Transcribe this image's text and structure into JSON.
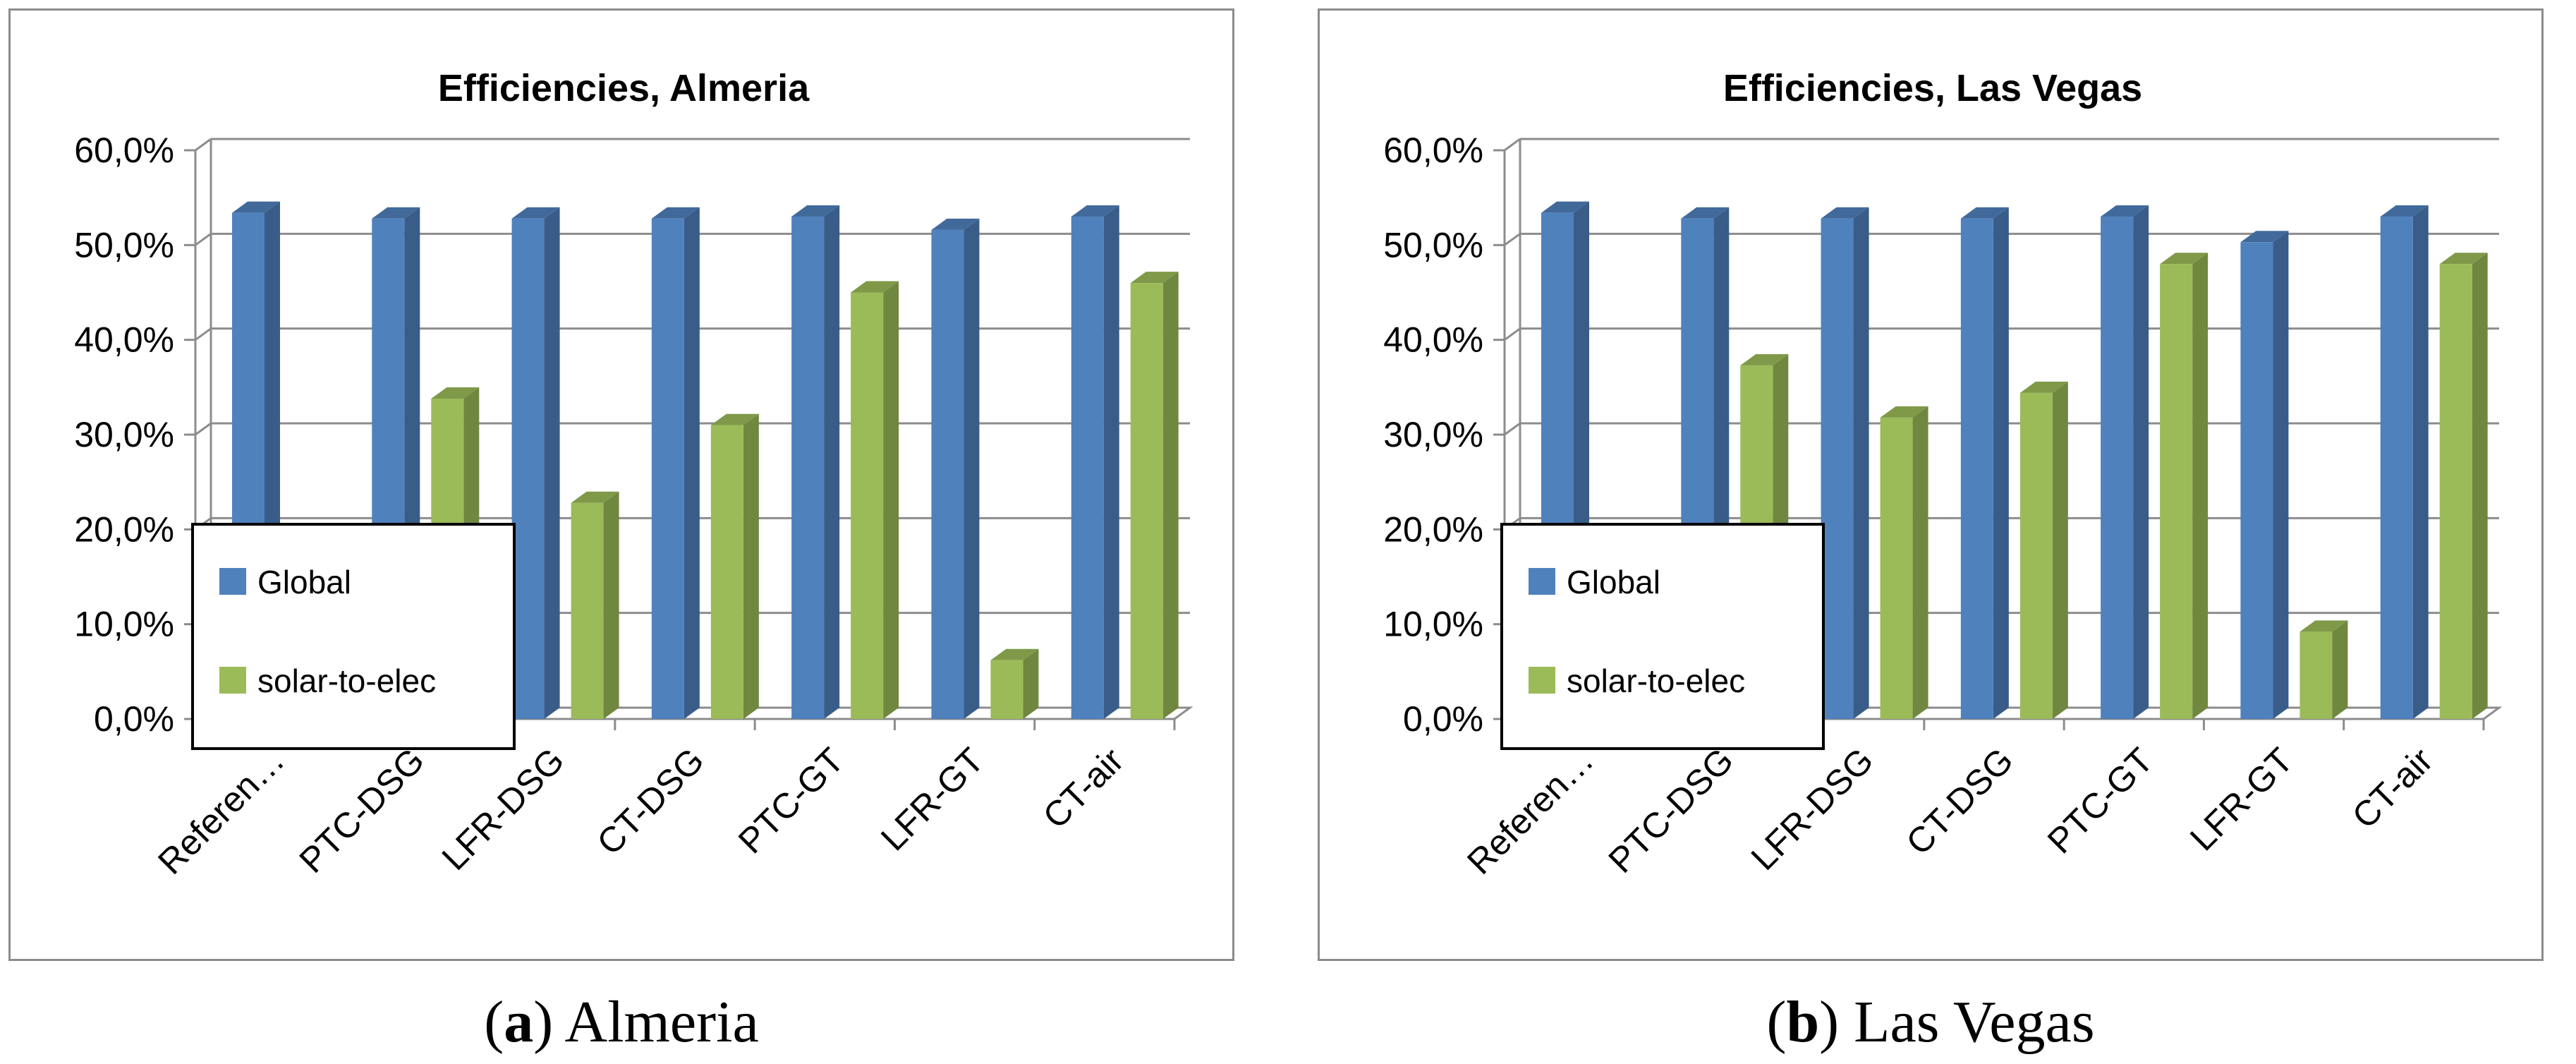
{
  "chart_data": [
    {
      "type": "bar",
      "title": "Efficiencies, Almeria",
      "categories": [
        "Referen…",
        "PTC-DSG",
        "LFR-DSG",
        "CT-DSG",
        "PTC-GT",
        "LFR-GT",
        "CT-air"
      ],
      "series": [
        {
          "name": "Global",
          "color": "#4f81bd",
          "values": [
            53.4,
            52.8,
            52.8,
            52.8,
            53.0,
            51.6,
            53.0
          ]
        },
        {
          "name": "solar-to-elec",
          "color": "#9bbb59",
          "values": [
            0,
            33.8,
            22.8,
            31.0,
            45.0,
            6.2,
            46.0
          ]
        }
      ],
      "yticks": [
        "0,0%",
        "10,0%",
        "20,0%",
        "30,0%",
        "40,0%",
        "50,0%",
        "60,0%"
      ],
      "ylim": [
        0,
        60
      ],
      "xlabel": "",
      "ylabel": "",
      "legend": [
        "Global",
        "solar-to-elec"
      ]
    },
    {
      "type": "bar",
      "title": "Efficiencies, Las Vegas",
      "categories": [
        "Referen…",
        "PTC-DSG",
        "LFR-DSG",
        "CT-DSG",
        "PTC-GT",
        "LFR-GT",
        "CT-air"
      ],
      "series": [
        {
          "name": "Global",
          "color": "#4f81bd",
          "values": [
            53.4,
            52.8,
            52.8,
            52.8,
            53.0,
            50.3,
            53.0
          ]
        },
        {
          "name": "solar-to-elec",
          "color": "#9bbb59",
          "values": [
            0,
            37.3,
            31.8,
            34.4,
            48.0,
            9.2,
            48.0
          ]
        }
      ],
      "yticks": [
        "0,0%",
        "10,0%",
        "20,0%",
        "30,0%",
        "40,0%",
        "50,0%",
        "60,0%"
      ],
      "ylim": [
        0,
        60
      ],
      "xlabel": "",
      "ylabel": "",
      "legend": [
        "Global",
        "solar-to-elec"
      ]
    }
  ],
  "captions": [
    {
      "letter": "a",
      "text": " Almeria"
    },
    {
      "letter": "b",
      "text": " Las Vegas"
    }
  ]
}
